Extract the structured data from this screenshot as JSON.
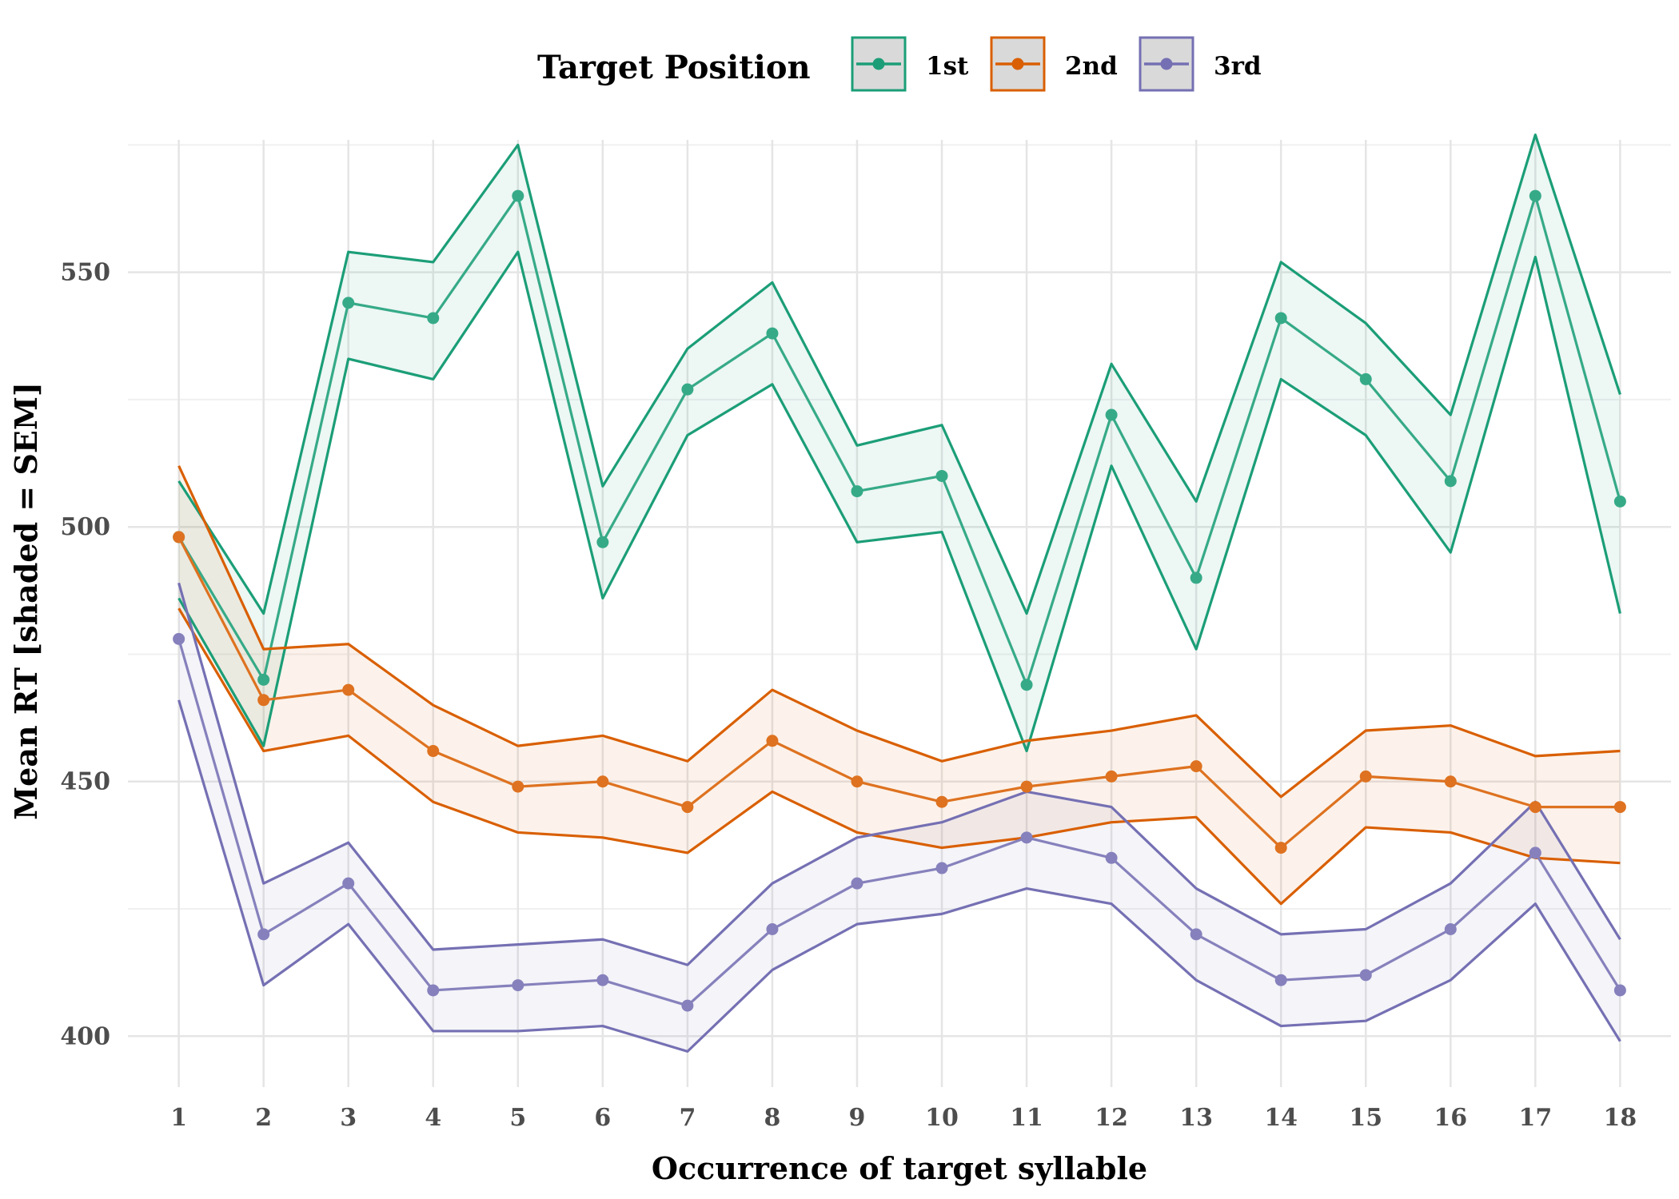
{
  "chart_data": {
    "type": "line",
    "xlabel": "Occurrence of target syllable",
    "ylabel": "Mean RT [shaded = SEM]",
    "x": [
      1,
      2,
      3,
      4,
      5,
      6,
      7,
      8,
      9,
      10,
      11,
      12,
      13,
      14,
      15,
      16,
      17,
      18
    ],
    "xlim": [
      0.4,
      18.6
    ],
    "ylim": [
      390,
      576
    ],
    "yticks": [
      400,
      450,
      500,
      550
    ],
    "grid": true,
    "legend": {
      "title": "Target Position",
      "position": "top"
    },
    "series": [
      {
        "name": "1st",
        "color": "#1b9e77",
        "values": [
          498,
          470,
          544,
          541,
          565,
          497,
          527,
          538,
          507,
          510,
          469,
          522,
          490,
          541,
          529,
          509,
          565,
          505
        ],
        "lower": [
          486,
          457,
          533,
          529,
          554,
          486,
          518,
          528,
          497,
          499,
          456,
          512,
          476,
          529,
          518,
          495,
          553,
          483
        ],
        "upper": [
          509,
          483,
          554,
          552,
          575,
          508,
          535,
          548,
          516,
          520,
          483,
          532,
          505,
          552,
          540,
          522,
          577,
          526
        ]
      },
      {
        "name": "2nd",
        "color": "#d95f02",
        "values": [
          498,
          466,
          468,
          456,
          449,
          450,
          445,
          458,
          450,
          446,
          449,
          451,
          453,
          437,
          451,
          450,
          445,
          445
        ],
        "lower": [
          484,
          456,
          459,
          446,
          440,
          439,
          436,
          448,
          440,
          437,
          439,
          442,
          443,
          426,
          441,
          440,
          435,
          434
        ],
        "upper": [
          512,
          476,
          477,
          465,
          457,
          459,
          454,
          468,
          460,
          454,
          458,
          460,
          463,
          447,
          460,
          461,
          455,
          456
        ]
      },
      {
        "name": "3rd",
        "color": "#7570b3",
        "values": [
          478,
          420,
          430,
          409,
          410,
          411,
          406,
          421,
          430,
          433,
          439,
          435,
          420,
          411,
          412,
          421,
          436,
          409
        ],
        "lower": [
          466,
          410,
          422,
          401,
          401,
          402,
          397,
          413,
          422,
          424,
          429,
          426,
          411,
          402,
          403,
          411,
          426,
          399
        ],
        "upper": [
          489,
          430,
          438,
          417,
          418,
          419,
          414,
          430,
          439,
          442,
          448,
          445,
          429,
          420,
          421,
          430,
          446,
          419
        ]
      }
    ]
  }
}
